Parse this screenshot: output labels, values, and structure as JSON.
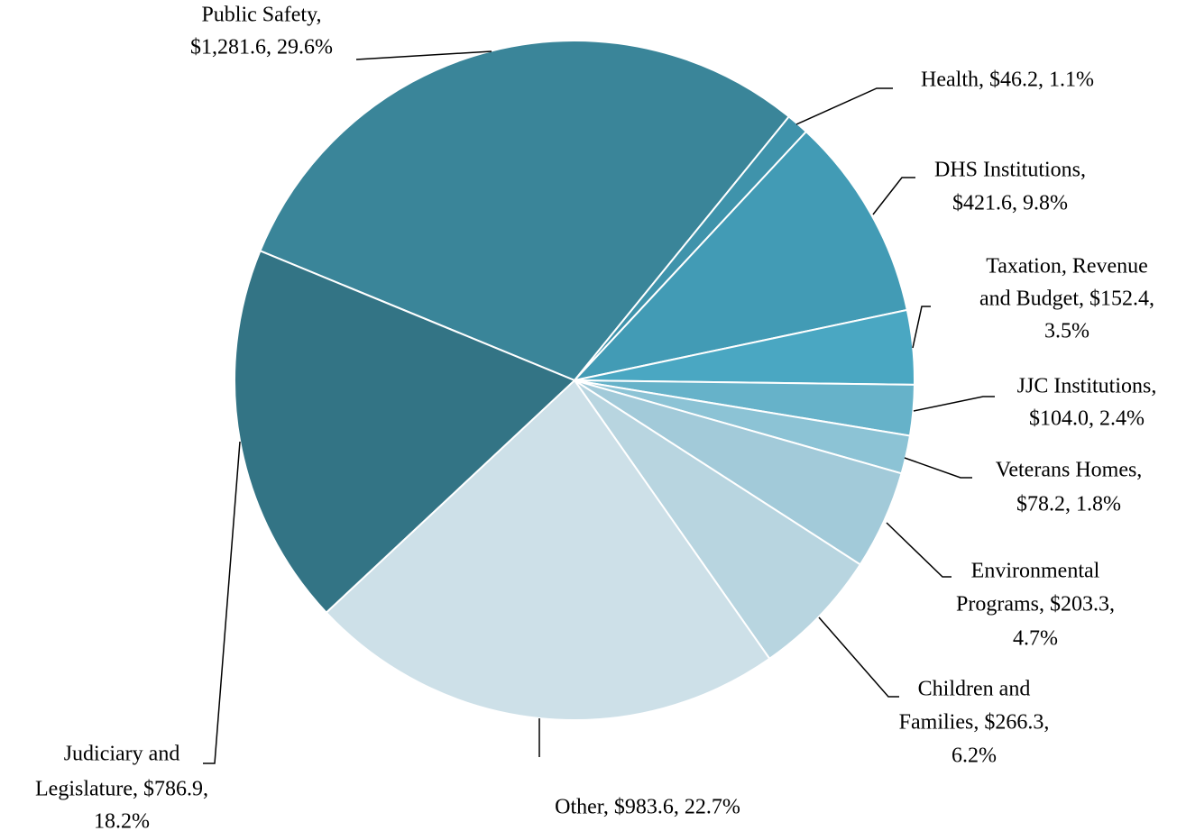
{
  "chart_data": {
    "type": "pie",
    "labels": [
      [
        "Public Safety,",
        "$1,281.6, 29.6%"
      ],
      [
        "Health, $46.2, 1.1%"
      ],
      [
        "DHS Institutions,",
        "$421.6, 9.8%"
      ],
      [
        "Taxation, Revenue",
        "and Budget, $152.4,",
        "3.5%"
      ],
      [
        "JJC Institutions,",
        "$104.0, 2.4%"
      ],
      [
        "Veterans Homes,",
        "$78.2, 1.8%"
      ],
      [
        "Environmental",
        "Programs, $203.3,",
        "4.7%"
      ],
      [
        "Children and",
        "Families, $266.3,",
        "6.2%"
      ],
      [
        "Other, $983.6, 22.7%"
      ],
      [
        "Judiciary and",
        "Legislature, $786.9,",
        "18.2%"
      ]
    ],
    "values": [
      1281.6,
      46.2,
      421.6,
      152.4,
      104.0,
      78.2,
      203.3,
      266.3,
      983.6,
      786.9
    ],
    "percents": [
      29.6,
      1.1,
      9.8,
      3.5,
      2.4,
      1.8,
      4.7,
      6.2,
      22.7,
      18.2
    ],
    "colors": [
      "#3a8599",
      "#3f93ab",
      "#429bb5",
      "#4aa7c2",
      "#66b2c9",
      "#8cc3d5",
      "#a2cad9",
      "#b8d5e0",
      "#cde0e8",
      "#337485"
    ]
  }
}
